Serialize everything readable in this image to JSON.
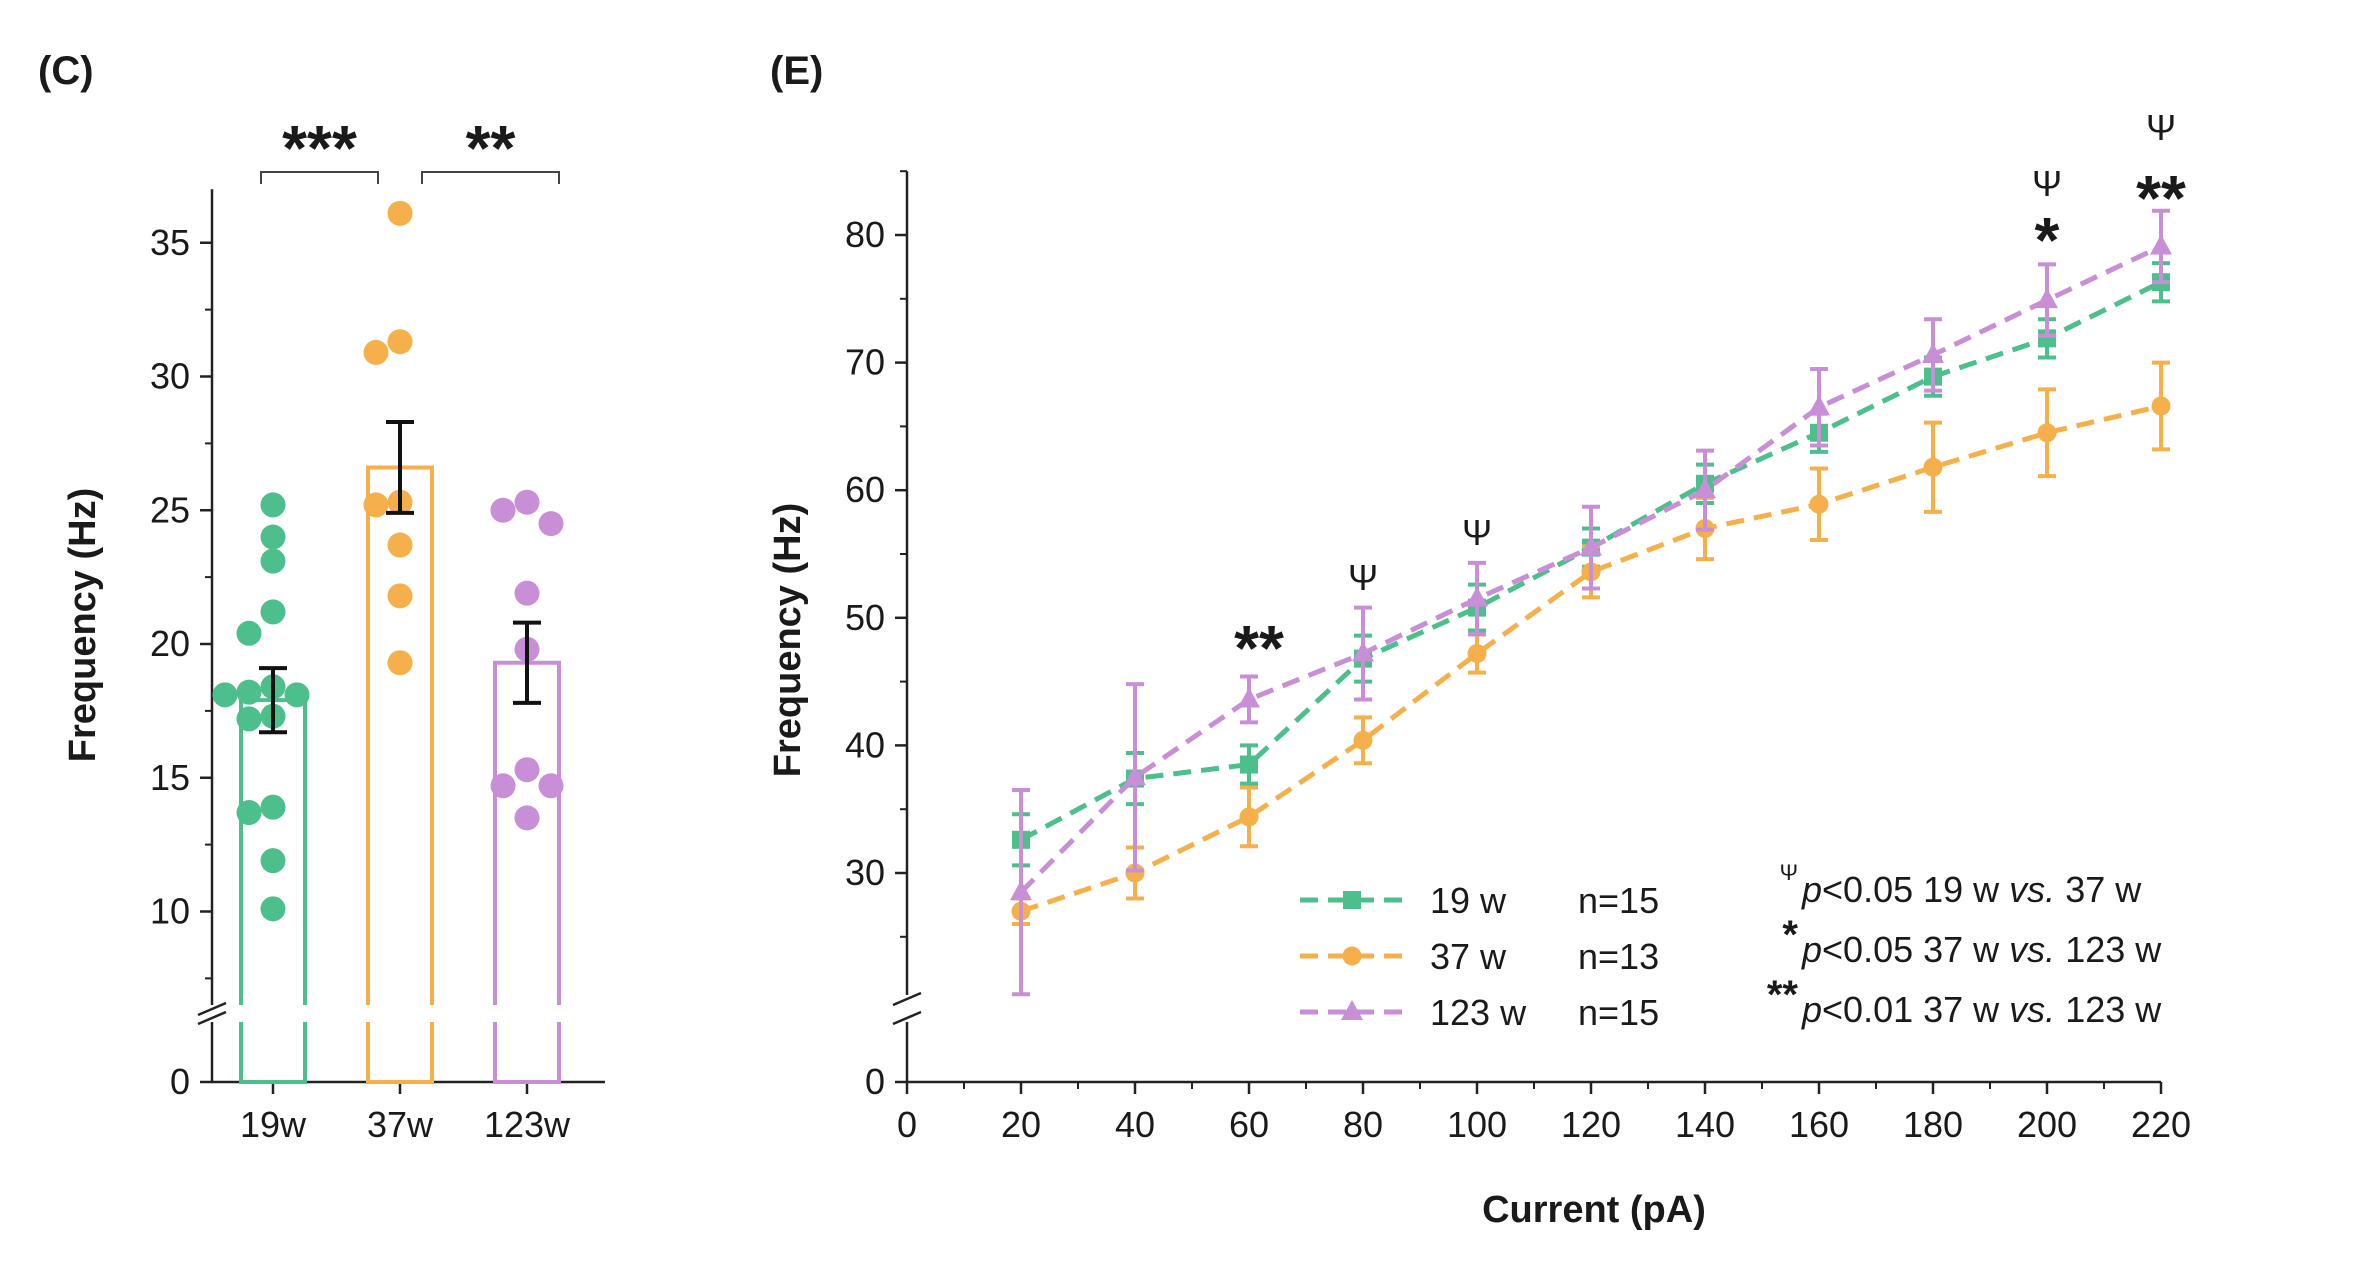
{
  "chart_data": [
    {
      "panel_label": "(C)",
      "type": "bar",
      "ylabel": "Frequency (Hz)",
      "xlabel": "",
      "axis_break": true,
      "ylim": [
        0,
        37
      ],
      "y_ticks_upper": [
        10,
        15,
        20,
        25,
        30,
        35
      ],
      "y_ticks_lower": [
        0
      ],
      "categories": [
        "19w",
        "37w",
        "123w"
      ],
      "colors": [
        "#4cbf8c",
        "#f5b04c",
        "#c98fd6"
      ],
      "means": [
        17.9,
        26.6,
        19.3
      ],
      "sem": [
        1.2,
        1.7,
        1.5
      ],
      "points": [
        [
          25.2,
          24.0,
          23.1,
          21.2,
          20.4,
          18.4,
          18.2,
          18.1,
          18.1,
          17.3,
          17.2,
          13.9,
          13.7,
          11.9,
          10.1
        ],
        [
          36.1,
          31.3,
          30.9,
          25.3,
          25.2,
          23.7,
          21.8,
          19.3
        ],
        [
          25.3,
          25.0,
          24.5,
          21.9,
          19.8,
          15.3,
          14.7,
          14.7,
          13.5
        ]
      ],
      "brackets": [
        {
          "from": 0,
          "to": 1,
          "label": "***"
        },
        {
          "from": 1,
          "to": 2,
          "label": "**"
        }
      ]
    },
    {
      "panel_label": "(E)",
      "type": "line",
      "xlabel": "Current (pA)",
      "ylabel": "Frequency (Hz)",
      "axis_break": true,
      "xlim": [
        0,
        220
      ],
      "ylim": [
        0,
        85
      ],
      "x_ticks": [
        0,
        20,
        40,
        60,
        80,
        100,
        120,
        140,
        160,
        180,
        200,
        220
      ],
      "y_ticks_upper": [
        30,
        40,
        50,
        60,
        70,
        80
      ],
      "y_ticks_lower": [
        0
      ],
      "x": [
        20,
        40,
        60,
        80,
        100,
        120,
        140,
        160,
        180,
        200,
        220
      ],
      "series": [
        {
          "name": "19 w",
          "n_label": "n=15",
          "color": "#4cbf8c",
          "marker": "square",
          "values": [
            32.6,
            37.4,
            38.5,
            46.8,
            50.8,
            55.5,
            60.5,
            64.5,
            68.9,
            71.9,
            76.3
          ],
          "err": [
            2.0,
            2.0,
            1.5,
            1.8,
            1.8,
            1.5,
            1.5,
            1.5,
            1.5,
            1.5,
            1.5
          ]
        },
        {
          "name": "37 w",
          "n_label": "n=13",
          "color": "#f5b04c",
          "marker": "circle",
          "values": [
            27.0,
            30.0,
            34.4,
            40.4,
            47.2,
            53.6,
            57.0,
            58.9,
            61.8,
            64.5,
            66.6
          ],
          "err": [
            1.0,
            2.0,
            2.3,
            1.8,
            1.5,
            2.0,
            2.4,
            2.8,
            3.5,
            3.4,
            3.4
          ]
        },
        {
          "name": "123 w",
          "n_label": "n=15",
          "color": "#c98fd6",
          "marker": "triangle",
          "values": [
            28.5,
            37.5,
            43.6,
            47.2,
            51.5,
            55.5,
            60.0,
            66.5,
            70.6,
            74.9,
            79.1
          ],
          "err": [
            8.0,
            7.3,
            1.8,
            3.6,
            2.8,
            3.2,
            3.1,
            3.0,
            2.8,
            2.8,
            2.8
          ]
        }
      ],
      "annotations": [
        {
          "x": 60,
          "stars": "**",
          "psi": false
        },
        {
          "x": 80,
          "stars": "",
          "psi": true
        },
        {
          "x": 100,
          "stars": "",
          "psi": true
        },
        {
          "x": 200,
          "stars": "*",
          "psi": true
        },
        {
          "x": 220,
          "stars": "**",
          "psi": true
        }
      ],
      "psi_symbol": "Ψ",
      "significance_notes": [
        {
          "symbol": "Ψ",
          "p": "p<0.05",
          "comparison": "19 w vs. 37 w",
          "text": "19 w",
          "vs": "vs.",
          "text2": "37 w"
        },
        {
          "symbol": "*",
          "p": "p<0.05",
          "text": "37 w",
          "vs": "vs.",
          "text2": "123 w"
        },
        {
          "symbol": "**",
          "p": "p<0.01",
          "text": "37 w",
          "vs": "vs.",
          "text2": "123 w"
        }
      ]
    }
  ]
}
